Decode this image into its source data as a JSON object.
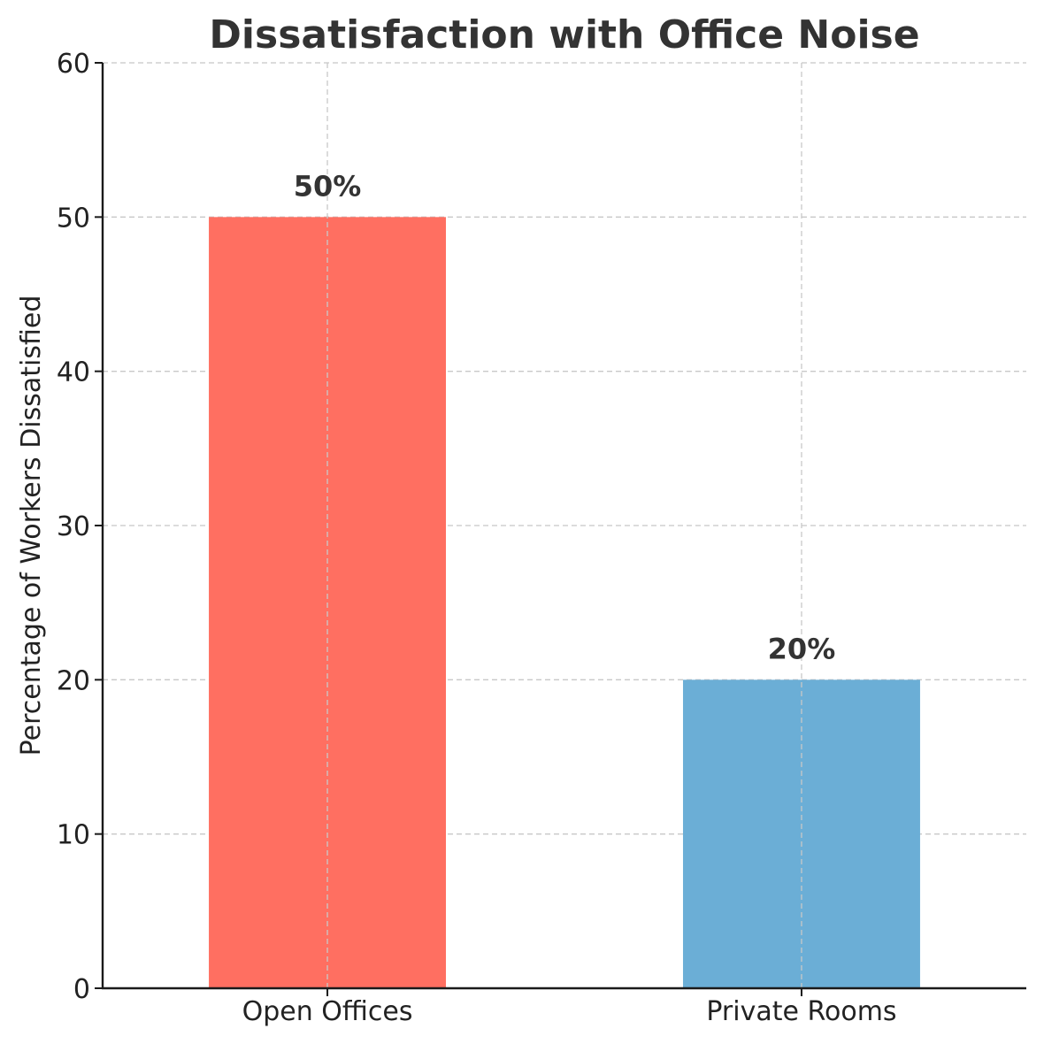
{
  "chart_data": {
    "type": "bar",
    "title": "Dissatisfaction with Office Noise",
    "xlabel": "",
    "ylabel": "Percentage of Workers Dissatisfied",
    "categories": [
      "Open Offices",
      "Private Rooms"
    ],
    "values": [
      50,
      20
    ],
    "value_labels": [
      "50%",
      "20%"
    ],
    "colors": [
      "#ff6f61",
      "#6baed6"
    ],
    "ylim": [
      0,
      60
    ],
    "yticks": [
      0,
      10,
      20,
      30,
      40,
      50,
      60
    ],
    "grid": true
  }
}
